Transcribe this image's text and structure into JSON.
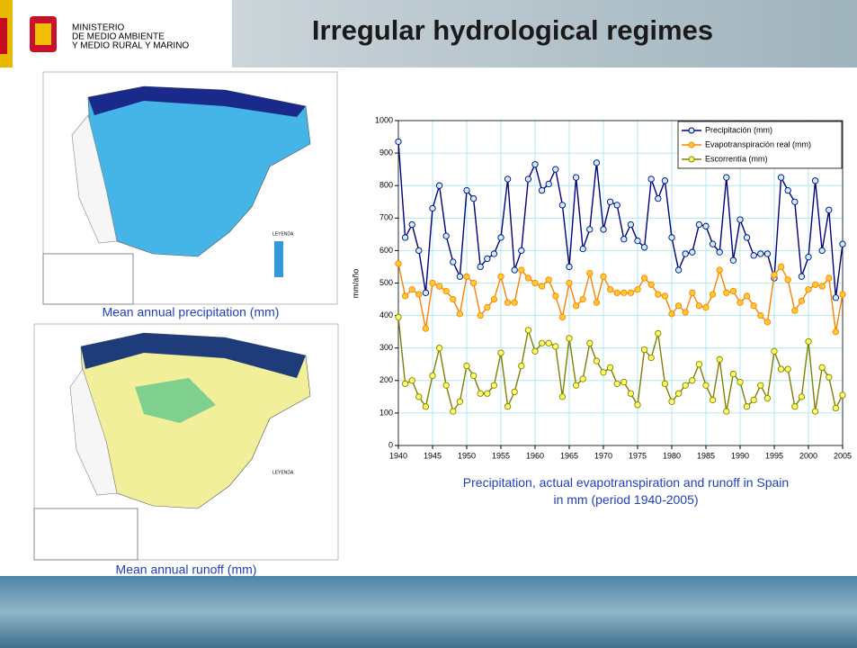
{
  "header": {
    "ministry": [
      "MINISTERIO",
      "DE MEDIO AMBIENTE",
      "Y MEDIO RURAL Y MARINO"
    ],
    "title": "Irregular hydrological regimes"
  },
  "maps": [
    {
      "legend_title": "LEYENDA",
      "caption": "Mean annual precipitation (mm)"
    },
    {
      "legend_title": "LEYENDA",
      "caption": "Mean annual runoff (mm)"
    }
  ],
  "chart_data": {
    "type": "line",
    "caption": "Precipitation, actual evapotranspiration and runoff in Spain in mm (period 1940-2005)",
    "y_label": "mm/año",
    "x": [
      1940,
      1941,
      1942,
      1943,
      1944,
      1945,
      1946,
      1947,
      1948,
      1949,
      1950,
      1951,
      1952,
      1953,
      1954,
      1955,
      1956,
      1957,
      1958,
      1959,
      1960,
      1961,
      1962,
      1963,
      1964,
      1965,
      1966,
      1967,
      1968,
      1969,
      1970,
      1971,
      1972,
      1973,
      1974,
      1975,
      1976,
      1977,
      1978,
      1979,
      1980,
      1981,
      1982,
      1983,
      1984,
      1985,
      1986,
      1987,
      1988,
      1989,
      1990,
      1991,
      1992,
      1993,
      1994,
      1995,
      1996,
      1997,
      1998,
      1999,
      2000,
      2001,
      2002,
      2003,
      2004,
      2005
    ],
    "series": [
      {
        "name": "Precipitación (mm)",
        "color": "#000080",
        "marker_fill": "#c8f0f8",
        "values": [
          935,
          640,
          680,
          600,
          470,
          730,
          800,
          645,
          565,
          520,
          785,
          760,
          550,
          575,
          590,
          640,
          820,
          540,
          600,
          820,
          865,
          785,
          805,
          850,
          740,
          550,
          825,
          605,
          665,
          870,
          665,
          750,
          740,
          635,
          680,
          630,
          610,
          820,
          760,
          815,
          640,
          540,
          590,
          595,
          680,
          675,
          620,
          595,
          825,
          570,
          695,
          640,
          585,
          590,
          590,
          515,
          825,
          785,
          750,
          520,
          580,
          815,
          600,
          725,
          455,
          620
        ]
      },
      {
        "name": "Evapotranspiración real (mm)",
        "color": "#ff8000",
        "marker_fill": "#ffcc33",
        "values": [
          560,
          460,
          480,
          465,
          360,
          500,
          490,
          475,
          450,
          405,
          520,
          500,
          400,
          425,
          450,
          520,
          440,
          440,
          540,
          515,
          500,
          490,
          510,
          460,
          395,
          500,
          430,
          450,
          530,
          440,
          520,
          480,
          470,
          470,
          470,
          480,
          515,
          495,
          465,
          460,
          405,
          430,
          410,
          470,
          430,
          425,
          465,
          540,
          470,
          475,
          440,
          460,
          430,
          400,
          380,
          525,
          550,
          510,
          415,
          445,
          480,
          495,
          490,
          515,
          350,
          465
        ]
      },
      {
        "name": "Escorrentía (mm)",
        "color": "#808000",
        "marker_fill": "#ffff66",
        "values": [
          395,
          190,
          200,
          150,
          120,
          215,
          300,
          185,
          105,
          135,
          245,
          215,
          160,
          160,
          185,
          285,
          120,
          165,
          245,
          355,
          290,
          315,
          315,
          305,
          150,
          330,
          185,
          205,
          315,
          260,
          225,
          240,
          190,
          195,
          160,
          125,
          295,
          270,
          345,
          190,
          135,
          160,
          185,
          200,
          250,
          185,
          140,
          265,
          105,
          220,
          195,
          120,
          140,
          185,
          145,
          290,
          235,
          235,
          120,
          150,
          320,
          105,
          240,
          210,
          115,
          155
        ]
      }
    ],
    "xlim": [
      1940,
      2005
    ],
    "xticks": [
      1940,
      1945,
      1950,
      1955,
      1960,
      1965,
      1970,
      1975,
      1980,
      1985,
      1990,
      1995,
      2000,
      2005
    ],
    "ylim": [
      0,
      1000
    ],
    "yticks": [
      0,
      100,
      200,
      300,
      400,
      500,
      600,
      700,
      800,
      900,
      1000
    ],
    "grid": true,
    "legend": "top-right"
  }
}
